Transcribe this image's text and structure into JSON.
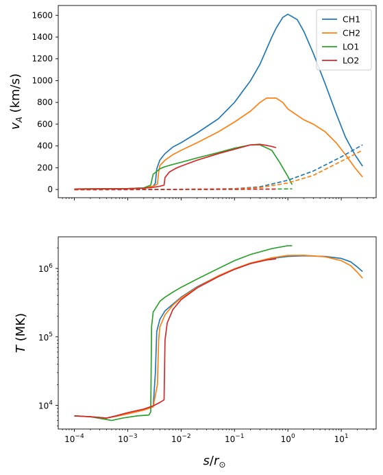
{
  "chart_data": [
    {
      "type": "line",
      "panel": "top",
      "xscale": "log",
      "yscale": "linear",
      "xlim": [
        5e-05,
        45
      ],
      "ylim": [
        -75,
        1690
      ],
      "xticks": [
        0.0001,
        0.001,
        0.01,
        0.1,
        1,
        10
      ],
      "xticklabels": [
        "",
        "",
        "",
        "",
        "",
        ""
      ],
      "yticks": [
        0,
        200,
        400,
        600,
        800,
        1000,
        1200,
        1400,
        1600
      ],
      "yticklabels": [
        "0",
        "200",
        "400",
        "600",
        "800",
        "1000",
        "1200",
        "1400",
        "1600"
      ],
      "ylabel_main": "v",
      "ylabel_sub": "A",
      "ylabel_unit": " (km/s)",
      "legend": "top-right",
      "series": [
        {
          "name": "CH1",
          "color": "#1f77b4",
          "dash": "solid",
          "x": [
            0.0001,
            0.0003,
            0.001,
            0.002,
            0.003,
            0.0033,
            0.0035,
            0.004,
            0.005,
            0.007,
            0.01,
            0.02,
            0.05,
            0.1,
            0.2,
            0.3,
            0.5,
            0.6,
            0.8,
            1,
            1.5,
            2,
            3,
            5,
            8,
            12,
            18,
            25
          ],
          "y": [
            5,
            6,
            8,
            15,
            30,
            60,
            190,
            270,
            330,
            390,
            430,
            520,
            650,
            800,
            1000,
            1150,
            1400,
            1480,
            1580,
            1610,
            1560,
            1450,
            1250,
            970,
            700,
            480,
            320,
            215
          ]
        },
        {
          "name": "CH2",
          "color": "#ff7f0e",
          "dash": "solid",
          "x": [
            0.0001,
            0.0003,
            0.001,
            0.002,
            0.003,
            0.0036,
            0.0038,
            0.004,
            0.005,
            0.007,
            0.01,
            0.02,
            0.05,
            0.1,
            0.2,
            0.3,
            0.4,
            0.6,
            0.8,
            1,
            1.5,
            2,
            3,
            5,
            8,
            12,
            18,
            25
          ],
          "y": [
            5,
            6,
            8,
            15,
            30,
            50,
            160,
            220,
            270,
            320,
            360,
            430,
            530,
            620,
            720,
            800,
            840,
            840,
            800,
            740,
            680,
            640,
            600,
            530,
            430,
            320,
            200,
            115
          ]
        },
        {
          "name": "LO1",
          "color": "#2ca02c",
          "dash": "solid",
          "x": [
            0.0001,
            0.0003,
            0.001,
            0.002,
            0.0027,
            0.0029,
            0.003,
            0.004,
            0.005,
            0.007,
            0.01,
            0.02,
            0.05,
            0.1,
            0.2,
            0.3,
            0.5,
            0.7,
            1,
            1.2
          ],
          "y": [
            5,
            6,
            8,
            15,
            40,
            110,
            140,
            190,
            210,
            230,
            250,
            290,
            340,
            380,
            410,
            410,
            360,
            250,
            120,
            45
          ]
        },
        {
          "name": "LO2",
          "color": "#d62728",
          "dash": "solid",
          "x": [
            0.0001,
            0.0003,
            0.001,
            0.002,
            0.003,
            0.004,
            0.0048,
            0.005,
            0.006,
            0.008,
            0.01,
            0.02,
            0.05,
            0.1,
            0.2,
            0.3,
            0.4,
            0.5,
            0.6
          ],
          "y": [
            5,
            6,
            8,
            12,
            20,
            30,
            40,
            110,
            160,
            195,
            215,
            270,
            330,
            370,
            410,
            415,
            405,
            395,
            385
          ]
        },
        {
          "name": "",
          "color": "#1f77b4",
          "dash": "dashed",
          "x": [
            0.0001,
            0.001,
            0.01,
            0.1,
            0.3,
            1,
            3,
            10,
            25
          ],
          "y": [
            0,
            0,
            2,
            8,
            25,
            85,
            170,
            300,
            410
          ]
        },
        {
          "name": "",
          "color": "#ff7f0e",
          "dash": "dashed",
          "x": [
            0.0001,
            0.001,
            0.01,
            0.1,
            0.3,
            1,
            3,
            10,
            25
          ],
          "y": [
            0,
            0,
            2,
            6,
            18,
            60,
            130,
            260,
            360
          ]
        },
        {
          "name": "",
          "color": "#2ca02c",
          "dash": "dashed",
          "x": [
            0.0001,
            0.001,
            0.01,
            0.1,
            0.5,
            1.2
          ],
          "y": [
            0,
            0,
            1,
            2,
            4,
            6
          ]
        },
        {
          "name": "",
          "color": "#d62728",
          "dash": "dashed",
          "x": [
            0.0001,
            0.001,
            0.01,
            0.1,
            0.6
          ],
          "y": [
            -2,
            -1,
            1,
            2,
            4
          ]
        }
      ]
    },
    {
      "type": "line",
      "panel": "bottom",
      "xscale": "log",
      "yscale": "log",
      "xlim": [
        5e-05,
        45
      ],
      "ylim": [
        4500,
        2900000
      ],
      "xticks": [
        0.0001,
        0.001,
        0.01,
        0.1,
        1,
        10
      ],
      "xtick_base": "10",
      "xtick_exponents": [
        "−4",
        "−3",
        "−2",
        "−1",
        "0",
        "1"
      ],
      "yticks": [
        10000,
        100000,
        1000000
      ],
      "ytick_base": "10",
      "ytick_exponents": [
        "4",
        "5",
        "6"
      ],
      "ylabel_main": "T",
      "ylabel_unit": " (MK)",
      "xlabel_main": "s",
      "xlabel_sep": "/",
      "xlabel_r": "r",
      "xlabel_sun": "⊙",
      "series": [
        {
          "name": "CH1",
          "color": "#1f77b4",
          "dash": "solid",
          "x": [
            0.0001,
            0.0002,
            0.0004,
            0.0006,
            0.001,
            0.002,
            0.003,
            0.0033,
            0.0035,
            0.004,
            0.005,
            0.007,
            0.01,
            0.02,
            0.05,
            0.1,
            0.2,
            0.5,
            1,
            2,
            5,
            10,
            15,
            20,
            25
          ],
          "y": [
            7000,
            6800,
            6500,
            6900,
            7500,
            8500,
            9500,
            30000,
            120000,
            180000,
            240000,
            300000,
            380000,
            540000,
            780000,
            980000,
            1180000,
            1400000,
            1500000,
            1530000,
            1500000,
            1400000,
            1250000,
            1050000,
            900000
          ]
        },
        {
          "name": "CH2",
          "color": "#ff7f0e",
          "dash": "solid",
          "x": [
            0.0001,
            0.0002,
            0.0004,
            0.0006,
            0.001,
            0.002,
            0.003,
            0.0036,
            0.0038,
            0.004,
            0.005,
            0.007,
            0.01,
            0.02,
            0.05,
            0.1,
            0.2,
            0.5,
            1,
            2,
            5,
            10,
            15,
            20,
            25
          ],
          "y": [
            7000,
            6800,
            6500,
            6900,
            7500,
            8500,
            9500,
            20000,
            90000,
            140000,
            210000,
            290000,
            370000,
            530000,
            780000,
            990000,
            1200000,
            1430000,
            1550000,
            1560000,
            1480000,
            1300000,
            1100000,
            880000,
            720000
          ]
        },
        {
          "name": "LO1",
          "color": "#2ca02c",
          "dash": "solid",
          "x": [
            0.0001,
            0.0002,
            0.0004,
            0.0005,
            0.0008,
            0.0015,
            0.0025,
            0.0027,
            0.0028,
            0.003,
            0.004,
            0.005,
            0.007,
            0.01,
            0.02,
            0.05,
            0.1,
            0.2,
            0.5,
            1,
            1.2
          ],
          "y": [
            7000,
            6800,
            6200,
            6000,
            6500,
            7000,
            7200,
            8000,
            140000,
            230000,
            330000,
            380000,
            450000,
            530000,
            700000,
            1000000,
            1300000,
            1600000,
            1950000,
            2150000,
            2150000
          ]
        },
        {
          "name": "LO2",
          "color": "#d62728",
          "dash": "solid",
          "x": [
            0.0001,
            0.0002,
            0.0004,
            0.0006,
            0.001,
            0.002,
            0.003,
            0.004,
            0.0048,
            0.005,
            0.0055,
            0.007,
            0.01,
            0.02,
            0.05,
            0.1,
            0.2,
            0.4,
            0.6
          ],
          "y": [
            7000,
            6800,
            6500,
            7000,
            7800,
            8800,
            9800,
            11000,
            12000,
            90000,
            160000,
            250000,
            350000,
            520000,
            760000,
            970000,
            1180000,
            1330000,
            1380000
          ]
        }
      ]
    }
  ]
}
